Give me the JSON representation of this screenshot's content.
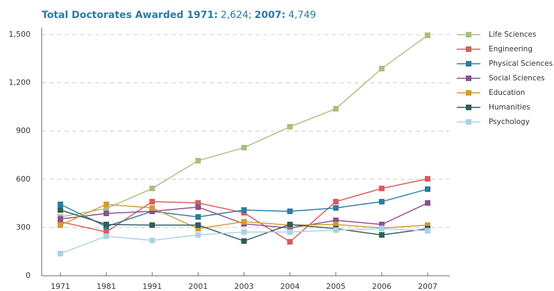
{
  "chart_data": {
    "type": "line",
    "title": [
      {
        "text": "Total Doctorates Awarded 1971:",
        "bold": true
      },
      {
        "text": "2,624;",
        "bold": false
      },
      {
        "text": "2007:",
        "bold": true
      },
      {
        "text": "4,749",
        "bold": false
      }
    ],
    "categories": [
      "1971",
      "1981",
      "1991",
      "2001",
      "2003",
      "2004",
      "2005",
      "2006",
      "2007"
    ],
    "ylim": [
      0,
      1500
    ],
    "yticks": [
      0,
      300,
      600,
      900,
      {
        "value": 1200,
        "label": "1,200"
      },
      {
        "value": 1500,
        "label": "1,500"
      }
    ],
    "grid": true,
    "legend": "right",
    "series": [
      {
        "name": "Life Sciences",
        "color": "#a9c07b",
        "values": [
          366,
          418,
          543,
          716,
          797,
          927,
          1039,
          1289,
          1496
        ]
      },
      {
        "name": "Engineering",
        "color": "#d95a5b",
        "values": [
          336,
          272,
          461,
          453,
          392,
          211,
          461,
          543,
          603
        ]
      },
      {
        "name": "Physical Sciences",
        "color": "#2b7ba0",
        "values": [
          444,
          306,
          401,
          366,
          409,
          401,
          422,
          461,
          539
        ]
      },
      {
        "name": "Social Sciences",
        "color": "#8c4f8f",
        "values": [
          353,
          388,
          401,
          427,
          323,
          297,
          345,
          319,
          453
        ]
      },
      {
        "name": "Education",
        "color": "#d49b30",
        "values": [
          315,
          444,
          422,
          293,
          336,
          315,
          319,
          297,
          315
        ]
      },
      {
        "name": "Humanities",
        "color": "#2f5d5a",
        "values": [
          409,
          319,
          315,
          315,
          216,
          319,
          293,
          254,
          293
        ]
      },
      {
        "name": "Psychology",
        "color": "#a9d4e1",
        "values": [
          138,
          246,
          220,
          254,
          272,
          272,
          284,
          293,
          280
        ]
      }
    ]
  }
}
